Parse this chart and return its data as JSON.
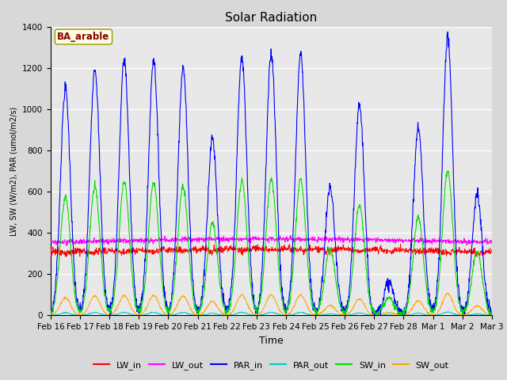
{
  "title": "Solar Radiation",
  "ylabel": "LW, SW (W/m2), PAR (umol/m2/s)",
  "xlabel": "Time",
  "annotation": "BA_arable",
  "annotation_color": "#8B0000",
  "annotation_bg": "#FFFFE0",
  "annotation_edge": "#999900",
  "ylim": [
    0,
    1400
  ],
  "yticks": [
    0,
    200,
    400,
    600,
    800,
    1000,
    1200,
    1400
  ],
  "fig_bg": "#D8D8D8",
  "plot_bg": "#E8E8E8",
  "line_colors": {
    "LW_in": "#FF0000",
    "LW_out": "#FF00FF",
    "PAR_in": "#0000FF",
    "PAR_out": "#00CCCC",
    "SW_in": "#00DD00",
    "SW_out": "#FFA500"
  },
  "n_days": 15,
  "tick_labels": [
    "Feb 16",
    "Feb 17",
    "Feb 18",
    "Feb 19",
    "Feb 20",
    "Feb 21",
    "Feb 22",
    "Feb 23",
    "Feb 24",
    "Feb 25",
    "Feb 26",
    "Feb 27",
    "Feb 28",
    "Mar 1",
    "Mar 2",
    "Mar 3"
  ],
  "day_strengths_par": [
    1100,
    1200,
    1240,
    1240,
    1200,
    860,
    1250,
    1270,
    1270,
    620,
    1020,
    160,
    910,
    1350,
    590
  ],
  "par_out_scale": 0.012,
  "sw_scale": 0.52,
  "sw_out_scale": 0.15
}
